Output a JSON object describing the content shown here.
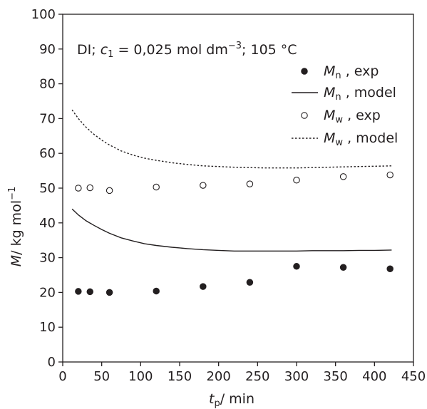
{
  "chart_data": {
    "type": "scatter",
    "annotation": {
      "prefix": "DI; ",
      "c_symbol": "c",
      "c_subscript": "1",
      "c_value": " = 0,025 mol dm",
      "c_exponent": "−3",
      "suffix": "; 105 °C"
    },
    "xlabel": {
      "symbol": "t",
      "subscript": "p",
      "unit": "/ min"
    },
    "ylabel": {
      "symbol": "M",
      "unit": "/ kg mol",
      "exponent": "−1"
    },
    "xlim": [
      0,
      450
    ],
    "ylim": [
      0,
      100
    ],
    "xticks": [
      "0",
      "50",
      "100",
      "150",
      "200",
      "250",
      "300",
      "350",
      "400",
      "450"
    ],
    "yticks": [
      "0",
      "10",
      "20",
      "30",
      "40",
      "50",
      "60",
      "70",
      "80",
      "90",
      "100"
    ],
    "legend_position": "top-right",
    "series": [
      {
        "name": "Mn , exp",
        "legend": {
          "symbol": "M",
          "subscript": "n",
          "text": " , exp"
        },
        "style": "filled-circle",
        "x": [
          20,
          35,
          60,
          120,
          180,
          240,
          300,
          360,
          420
        ],
        "y": [
          20.3,
          20.2,
          20.0,
          20.4,
          21.7,
          22.9,
          27.5,
          27.2,
          26.8
        ]
      },
      {
        "name": "Mn , model",
        "legend": {
          "symbol": "M",
          "subscript": "n",
          "text": " , model"
        },
        "style": "solid-line",
        "x": [
          12,
          20,
          30,
          40,
          50,
          60,
          75,
          90,
          105,
          120,
          140,
          160,
          180,
          200,
          220,
          240,
          260,
          280,
          300,
          320,
          340,
          360,
          380,
          400,
          422
        ],
        "y": [
          44.0,
          42.3,
          40.6,
          39.3,
          38.1,
          37.0,
          35.7,
          34.8,
          34.0,
          33.5,
          33.0,
          32.6,
          32.3,
          32.1,
          31.9,
          31.9,
          31.9,
          31.9,
          31.9,
          32.0,
          32.0,
          32.0,
          32.1,
          32.1,
          32.2
        ]
      },
      {
        "name": "Mw , exp",
        "legend": {
          "symbol": "M",
          "subscript": "w",
          "text": " , exp"
        },
        "style": "open-circle",
        "x": [
          20,
          35,
          60,
          120,
          180,
          240,
          300,
          360,
          420
        ],
        "y": [
          50.0,
          50.1,
          49.3,
          50.3,
          50.8,
          51.2,
          52.3,
          53.3,
          53.8
        ]
      },
      {
        "name": "Mw , model",
        "legend": {
          "symbol": "M",
          "subscript": "w",
          "text": " , model"
        },
        "style": "dotted-line",
        "x": [
          12,
          20,
          30,
          40,
          50,
          60,
          75,
          90,
          105,
          120,
          140,
          160,
          180,
          200,
          220,
          240,
          260,
          280,
          300,
          320,
          340,
          360,
          380,
          400,
          422
        ],
        "y": [
          72.5,
          70.0,
          67.5,
          65.5,
          63.8,
          62.4,
          60.7,
          59.5,
          58.6,
          58.0,
          57.3,
          56.8,
          56.4,
          56.2,
          56.0,
          55.9,
          55.8,
          55.8,
          55.8,
          55.9,
          56.0,
          56.1,
          56.2,
          56.3,
          56.4
        ]
      }
    ]
  }
}
